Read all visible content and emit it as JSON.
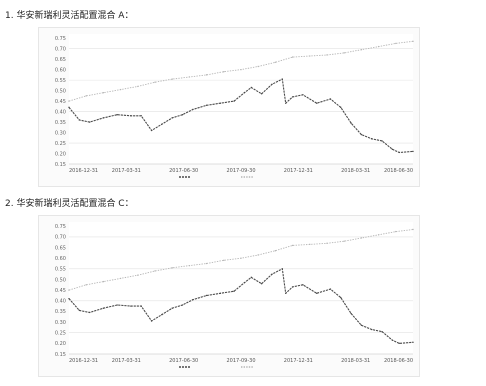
{
  "headings": [
    "1. 华安新瑞利灵活配置混合 A：",
    "2. 华安新瑞利灵活配置混合 C："
  ],
  "chart_data": [
    {
      "type": "line",
      "title": "",
      "xlabel": "",
      "ylabel": "",
      "y_ticks": [
        "0.75",
        "0.70",
        "0.65",
        "0.60",
        "0.55",
        "0.50",
        "0.45",
        "0.40",
        "0.35",
        "0.30",
        "0.25",
        "0.20",
        "0.15"
      ],
      "x_ticks": [
        "2016-12-31",
        "2017-03-31",
        "2017-06-30",
        "2017-09-30",
        "2017-12-31",
        "2018-03-31",
        "2018-06-30"
      ],
      "x_range": [
        0,
        100
      ],
      "ylim": [
        0.15,
        0.77
      ],
      "grid": true,
      "legend_position": "bottom",
      "legend_text": "",
      "series": [
        {
          "name": "",
          "color": "#b6b6b6",
          "x": [
            0,
            5,
            10,
            15,
            20,
            25,
            30,
            35,
            40,
            45,
            50,
            55,
            60,
            65,
            70,
            75,
            80,
            85,
            90,
            95,
            100
          ],
          "values": [
            0.45,
            0.475,
            0.49,
            0.505,
            0.52,
            0.54,
            0.555,
            0.565,
            0.575,
            0.59,
            0.6,
            0.615,
            0.635,
            0.66,
            0.665,
            0.67,
            0.68,
            0.695,
            0.71,
            0.725,
            0.735
          ]
        },
        {
          "name": "",
          "color": "#4a4a4a",
          "x": [
            0,
            3,
            6,
            10,
            14,
            18,
            21,
            24,
            27,
            30,
            33,
            36,
            40,
            44,
            48,
            51,
            53,
            56,
            59,
            62,
            63,
            65,
            68,
            72,
            76,
            79,
            82,
            85,
            88,
            91,
            94,
            96,
            100
          ],
          "values": [
            0.42,
            0.36,
            0.35,
            0.37,
            0.385,
            0.38,
            0.38,
            0.31,
            0.34,
            0.37,
            0.385,
            0.41,
            0.43,
            0.44,
            0.45,
            0.49,
            0.515,
            0.485,
            0.53,
            0.555,
            0.44,
            0.47,
            0.48,
            0.44,
            0.46,
            0.42,
            0.345,
            0.29,
            0.27,
            0.26,
            0.22,
            0.205,
            0.21
          ]
        }
      ]
    },
    {
      "type": "line",
      "title": "",
      "xlabel": "",
      "ylabel": "",
      "y_ticks": [
        "0.75",
        "0.70",
        "0.65",
        "0.60",
        "0.55",
        "0.50",
        "0.45",
        "0.40",
        "0.35",
        "0.30",
        "0.25",
        "0.20",
        "0.15"
      ],
      "x_ticks": [
        "2016-12-31",
        "2017-03-31",
        "2017-06-30",
        "2017-09-30",
        "2017-12-31",
        "2018-03-31",
        "2018-06-30"
      ],
      "x_range": [
        0,
        100
      ],
      "ylim": [
        0.15,
        0.77
      ],
      "grid": true,
      "legend_position": "bottom",
      "legend_text": "",
      "series": [
        {
          "name": "",
          "color": "#b6b6b6",
          "x": [
            0,
            5,
            10,
            15,
            20,
            25,
            30,
            35,
            40,
            45,
            50,
            55,
            60,
            65,
            70,
            75,
            80,
            85,
            90,
            95,
            100
          ],
          "values": [
            0.45,
            0.475,
            0.49,
            0.505,
            0.52,
            0.54,
            0.555,
            0.565,
            0.575,
            0.59,
            0.6,
            0.615,
            0.635,
            0.66,
            0.665,
            0.67,
            0.68,
            0.695,
            0.71,
            0.725,
            0.735
          ]
        },
        {
          "name": "",
          "color": "#4a4a4a",
          "x": [
            0,
            3,
            6,
            10,
            14,
            18,
            21,
            24,
            27,
            30,
            33,
            36,
            40,
            44,
            48,
            51,
            53,
            56,
            59,
            62,
            63,
            65,
            68,
            72,
            76,
            79,
            82,
            85,
            88,
            91,
            94,
            96,
            100
          ],
          "values": [
            0.41,
            0.355,
            0.345,
            0.365,
            0.38,
            0.375,
            0.375,
            0.305,
            0.335,
            0.365,
            0.38,
            0.405,
            0.425,
            0.435,
            0.445,
            0.485,
            0.51,
            0.48,
            0.525,
            0.55,
            0.435,
            0.465,
            0.475,
            0.435,
            0.455,
            0.415,
            0.34,
            0.285,
            0.265,
            0.255,
            0.215,
            0.2,
            0.205
          ]
        }
      ]
    }
  ]
}
